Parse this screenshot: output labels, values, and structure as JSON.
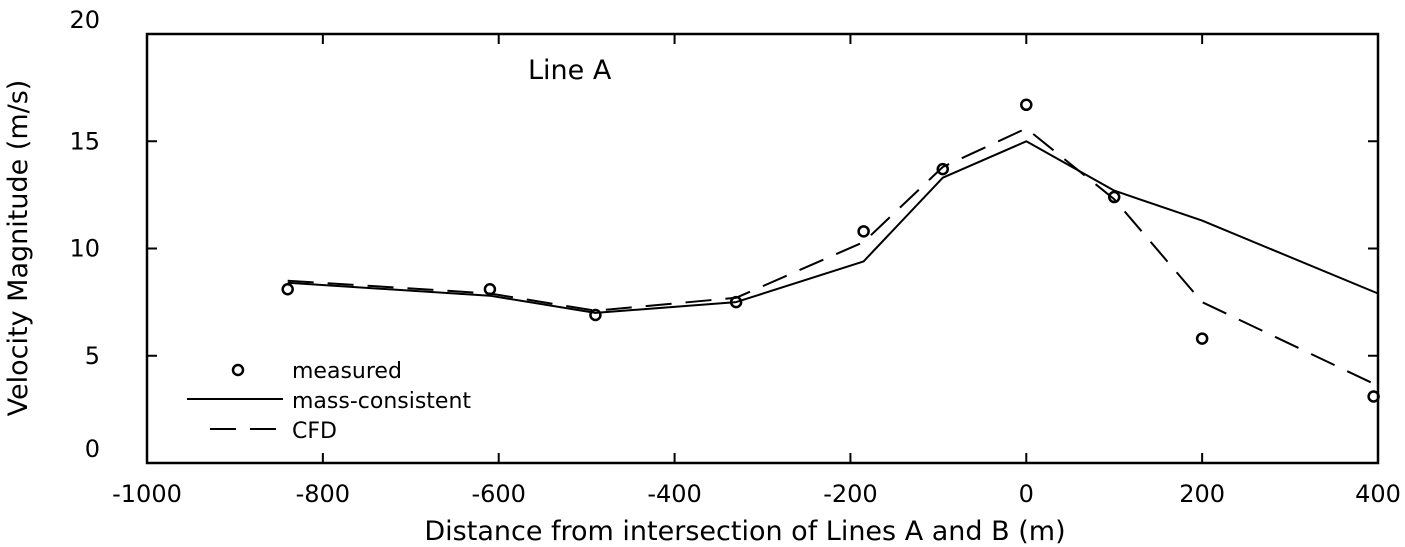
{
  "chart_data": {
    "type": "line",
    "title": "",
    "annotation": "Line A",
    "xlabel": "Distance from intersection of Lines A and B (m)",
    "ylabel": "Velocity Magnitude (m/s)",
    "xlim": [
      -1000,
      400
    ],
    "ylim": [
      0,
      20
    ],
    "xticks": [
      -1000,
      -800,
      -600,
      -400,
      -200,
      0,
      200,
      400
    ],
    "yticks": [
      0,
      5,
      10,
      15,
      20
    ],
    "grid": false,
    "legend_position": "bottom-left",
    "series": [
      {
        "name": "measured",
        "style": "markers",
        "x": [
          -840,
          -610,
          -490,
          -330,
          -185,
          -95,
          0,
          100,
          200,
          395
        ],
        "y": [
          8.1,
          8.1,
          6.9,
          7.5,
          10.8,
          13.7,
          16.7,
          12.4,
          5.8,
          3.1
        ]
      },
      {
        "name": "mass-consistent",
        "style": "solid",
        "x": [
          -840,
          -610,
          -490,
          -330,
          -185,
          -95,
          0,
          100,
          200,
          400
        ],
        "y": [
          8.4,
          7.8,
          7.0,
          7.5,
          9.4,
          13.3,
          15.0,
          12.7,
          11.3,
          7.9
        ]
      },
      {
        "name": "CFD",
        "style": "dashed",
        "x": [
          -840,
          -610,
          -490,
          -330,
          -185,
          -95,
          0,
          100,
          200,
          400
        ],
        "y": [
          8.5,
          7.9,
          7.1,
          7.7,
          10.3,
          13.8,
          15.6,
          12.3,
          7.5,
          3.6
        ]
      }
    ],
    "style": {
      "line_color": "#000000",
      "background": "#ffffff"
    }
  }
}
